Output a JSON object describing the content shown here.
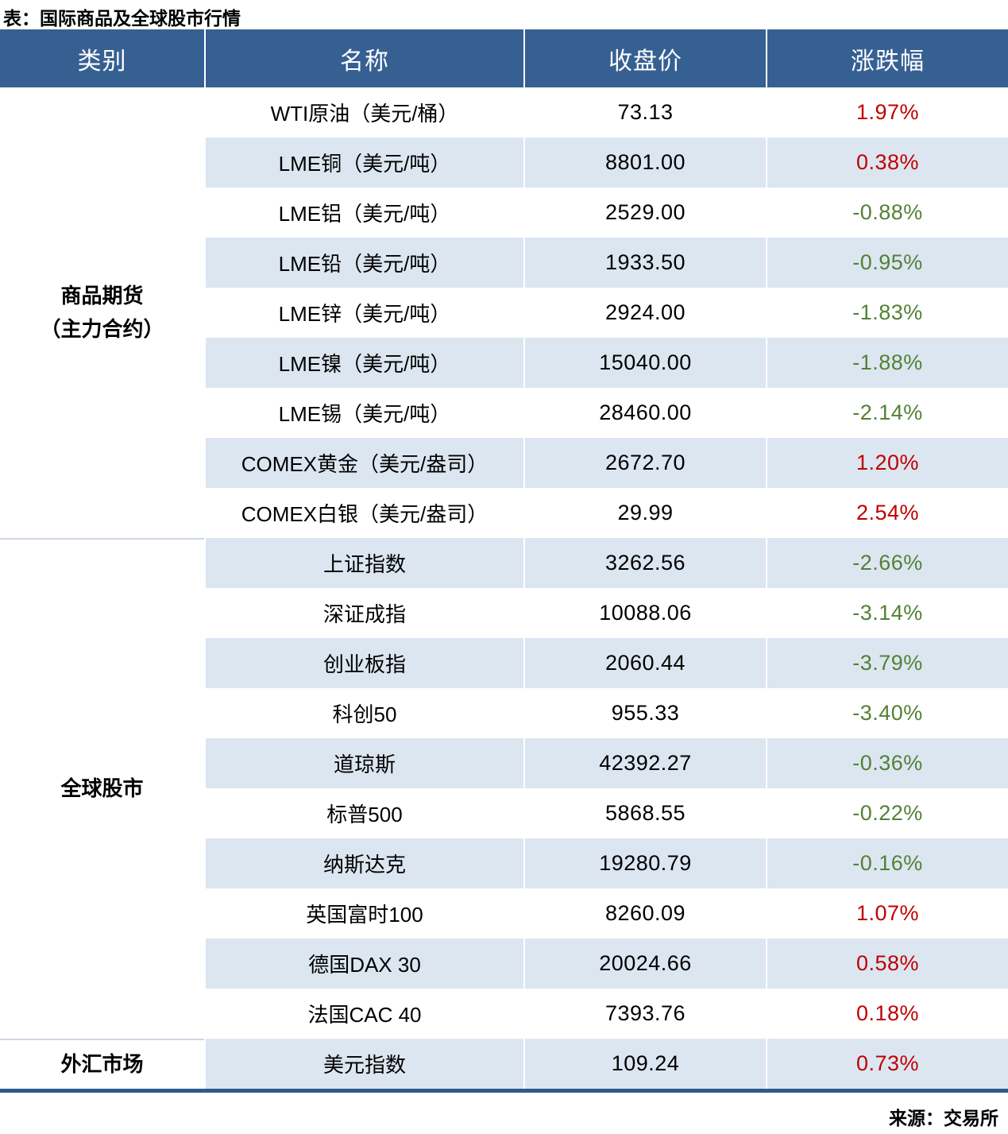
{
  "title": "表：国际商品及全球股市行情",
  "source": "来源：交易所",
  "colors": {
    "header_bg": "#366092",
    "header_text": "#FFFFFF",
    "row_stripe": "#DCE6F1",
    "positive_change": "#C00000",
    "negative_change": "#538135",
    "bottom_border": "#2E5A88",
    "section_divider": "#CDD8E6"
  },
  "headers": {
    "category": "类别",
    "name": "名称",
    "close": "收盘价",
    "change": "涨跌幅"
  },
  "categories": [
    {
      "line1": "商品期货",
      "line2": "（主力合约）",
      "rows": 9
    },
    {
      "line1": "全球股市",
      "line2": "",
      "rows": 10
    },
    {
      "line1": "外汇市场",
      "line2": "",
      "rows": 1
    }
  ],
  "rows": [
    {
      "name": "WTI原油（美元/桶）",
      "close": "73.13",
      "change": "1.97%"
    },
    {
      "name": "LME铜（美元/吨）",
      "close": "8801.00",
      "change": "0.38%"
    },
    {
      "name": "LME铝（美元/吨）",
      "close": "2529.00",
      "change": "-0.88%"
    },
    {
      "name": "LME铅（美元/吨）",
      "close": "1933.50",
      "change": "-0.95%"
    },
    {
      "name": "LME锌（美元/吨）",
      "close": "2924.00",
      "change": "-1.83%"
    },
    {
      "name": "LME镍（美元/吨）",
      "close": "15040.00",
      "change": "-1.88%"
    },
    {
      "name": "LME锡（美元/吨）",
      "close": "28460.00",
      "change": "-2.14%"
    },
    {
      "name": "COMEX黄金（美元/盎司）",
      "close": "2672.70",
      "change": "1.20%"
    },
    {
      "name": "COMEX白银（美元/盎司）",
      "close": "29.99",
      "change": "2.54%"
    },
    {
      "name": "上证指数",
      "close": "3262.56",
      "change": "-2.66%"
    },
    {
      "name": "深证成指",
      "close": "10088.06",
      "change": "-3.14%"
    },
    {
      "name": "创业板指",
      "close": "2060.44",
      "change": "-3.79%"
    },
    {
      "name": "科创50",
      "close": "955.33",
      "change": "-3.40%"
    },
    {
      "name": "道琼斯",
      "close": "42392.27",
      "change": "-0.36%"
    },
    {
      "name": "标普500",
      "close": "5868.55",
      "change": "-0.22%"
    },
    {
      "name": "纳斯达克",
      "close": "19280.79",
      "change": "-0.16%"
    },
    {
      "name": "英国富时100",
      "close": "8260.09",
      "change": "1.07%"
    },
    {
      "name": "德国DAX 30",
      "close": "20024.66",
      "change": "0.58%"
    },
    {
      "name": "法国CAC 40",
      "close": "7393.76",
      "change": "0.18%"
    },
    {
      "name": "美元指数",
      "close": "109.24",
      "change": "0.73%"
    }
  ]
}
